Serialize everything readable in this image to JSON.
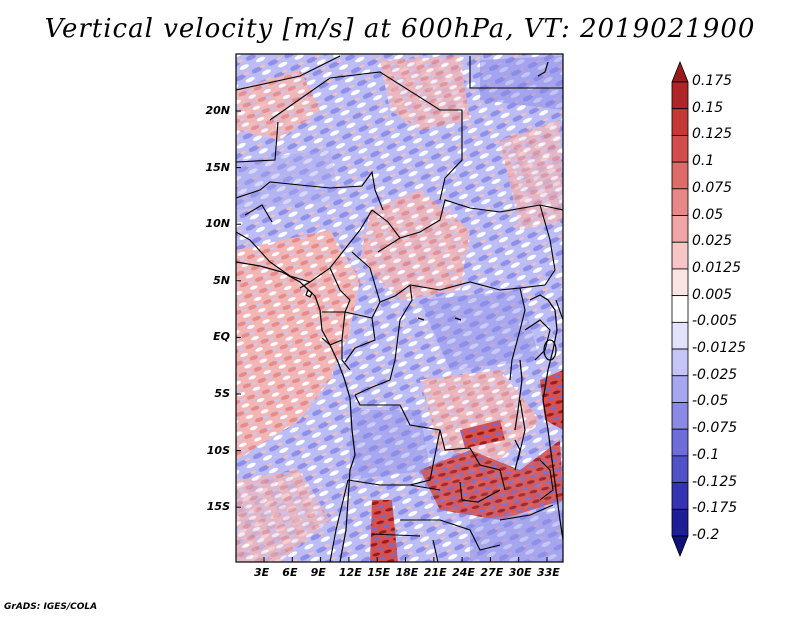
{
  "title": "Vertical velocity [m/s] at 600hPa, VT: 2019021900",
  "footer": "GrADS: IGES/COLA",
  "lat_labels": [
    "20N",
    "15N",
    "10N",
    "5N",
    "EQ",
    "5S",
    "10S",
    "15S"
  ],
  "lon_labels": [
    "3E",
    "6E",
    "9E",
    "12E",
    "15E",
    "18E",
    "21E",
    "24E",
    "27E",
    "30E",
    "33E"
  ],
  "colorbar": {
    "labels": [
      "0.175",
      "0.15",
      "0.125",
      "0.1",
      "0.075",
      "0.05",
      "0.025",
      "0.0125",
      "0.005",
      "-0.005",
      "-0.0125",
      "-0.025",
      "-0.05",
      "-0.075",
      "-0.1",
      "-0.125",
      "-0.175",
      "-0.2"
    ],
    "colors": [
      "#9b1b1b",
      "#b02525",
      "#c43838",
      "#d34d4d",
      "#de6a6a",
      "#e88787",
      "#f0a6a6",
      "#f6c6c6",
      "#fbe3e3",
      "#ffffff",
      "#e2e2fb",
      "#c4c4f6",
      "#a7a7ef",
      "#8a8ae6",
      "#6d6dd9",
      "#5151c8",
      "#3434b1",
      "#1e1e96",
      "#11117a"
    ]
  }
}
